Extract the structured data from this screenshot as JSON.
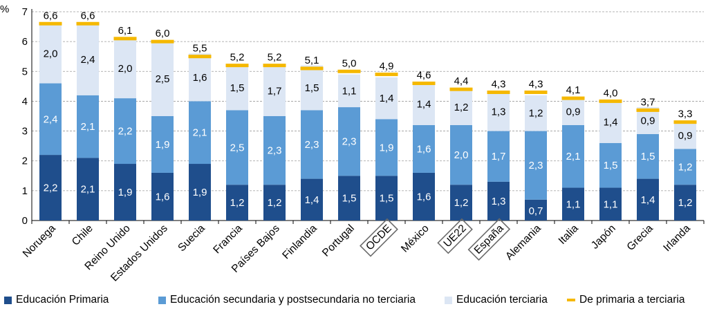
{
  "chart_data": {
    "type": "stacked-bar",
    "unit_label": "%",
    "ylim": [
      0,
      7
    ],
    "yticks": [
      0,
      1,
      2,
      3,
      4,
      5,
      6,
      7
    ],
    "grid": true,
    "categories": [
      "Noruega",
      "Chile",
      "Reino Unido",
      "Estados Unidos",
      "Suecia",
      "Francia",
      "Países Bajos",
      "Finlandia",
      "Portugal",
      "OCDE",
      "México",
      "UE22",
      "España",
      "Alemania",
      "Italia",
      "Japón",
      "Grecia",
      "Irlanda"
    ],
    "boxed_categories": [
      "OCDE",
      "UE22",
      "España"
    ],
    "series": [
      {
        "name": "Educación Primaria",
        "color": "#1f4e8c",
        "label_color": "#ffffff",
        "values": [
          2.2,
          2.1,
          1.9,
          1.6,
          1.9,
          1.2,
          1.2,
          1.4,
          1.5,
          1.5,
          1.6,
          1.2,
          1.3,
          0.7,
          1.1,
          1.1,
          1.4,
          1.2
        ],
        "labels": [
          "2,2",
          "2,1",
          "1,9",
          "1,6",
          "1,9",
          "1,2",
          "1,2",
          "1,4",
          "1,5",
          "1,5",
          "1,6",
          "1,2",
          "1,3",
          "0,7",
          "1,1",
          "1,1",
          "1,4",
          "1,2"
        ],
        "label_outside_bar_index": [
          13
        ]
      },
      {
        "name": "Educación secundaria y postsecundaria no terciaria",
        "color": "#5b9bd5",
        "label_color": "#ffffff",
        "values": [
          2.4,
          2.1,
          2.2,
          1.9,
          2.1,
          2.5,
          2.3,
          2.3,
          2.3,
          1.9,
          1.6,
          2.0,
          1.7,
          2.3,
          2.1,
          1.5,
          1.5,
          1.2
        ],
        "labels": [
          "2,4",
          "2,1",
          "2,2",
          "1,9",
          "2,1",
          "2,5",
          "2,3",
          "2,3",
          "2,3",
          "1,9",
          "1,6",
          "2,0",
          "1,7",
          "2,3",
          "2,1",
          "1,5",
          "1,5",
          "1,2"
        ]
      },
      {
        "name": "Educación terciaria",
        "color": "#dce6f4",
        "label_color": "#000000",
        "values": [
          2.0,
          2.4,
          2.0,
          2.5,
          1.6,
          1.5,
          1.7,
          1.5,
          1.1,
          1.4,
          1.4,
          1.2,
          1.3,
          1.2,
          0.9,
          1.4,
          0.9,
          0.9
        ],
        "labels": [
          "2,0",
          "2,4",
          "2,0",
          "2,5",
          "1,6",
          "1,5",
          "1,7",
          "1,5",
          "1,1",
          "1,4",
          "1,4",
          "1,2",
          "1,3",
          "1,2",
          "0,9",
          "1,4",
          "0,9",
          "0,9"
        ]
      },
      {
        "name": "De primaria a terciaria",
        "color": "#f5b800",
        "type": "marker",
        "values": [
          6.6,
          6.6,
          6.1,
          6.0,
          5.5,
          5.2,
          5.2,
          5.1,
          5.0,
          4.9,
          4.6,
          4.4,
          4.3,
          4.3,
          4.1,
          4.0,
          3.7,
          3.3
        ],
        "labels": [
          "6,6",
          "6,6",
          "6,1",
          "6,0",
          "5,5",
          "5,2",
          "5,2",
          "5,1",
          "5,0",
          "4,9",
          "4,6",
          "4,4",
          "4,3",
          "4,3",
          "4,1",
          "4,0",
          "3,7",
          "3,3"
        ]
      }
    ],
    "legend_position": "bottom"
  },
  "legend": {
    "items": [
      {
        "label": "Educación Primaria",
        "color": "#1f4e8c"
      },
      {
        "label": "Educación secundaria y postsecundaria no terciaria",
        "color": "#5b9bd5"
      },
      {
        "label": "Educación terciaria",
        "color": "#dce6f4"
      },
      {
        "label": "De primaria a terciaria",
        "color": "#f5b800"
      }
    ]
  }
}
